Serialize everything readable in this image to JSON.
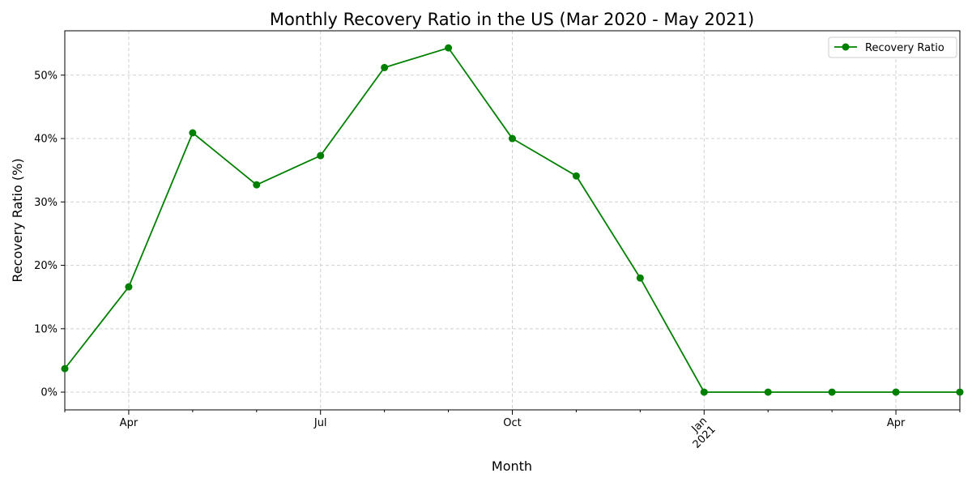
{
  "chart_data": {
    "type": "line",
    "title": "Monthly Recovery Ratio in the US (Mar 2020 - May 2021)",
    "xlabel": "Month",
    "ylabel": "Recovery Ratio (%)",
    "x": [
      "2020-03",
      "2020-04",
      "2020-05",
      "2020-06",
      "2020-07",
      "2020-08",
      "2020-09",
      "2020-10",
      "2020-11",
      "2020-12",
      "2021-01",
      "2021-02",
      "2021-03",
      "2021-04",
      "2021-05"
    ],
    "series": [
      {
        "name": "Recovery Ratio",
        "color": "#008000",
        "values": [
          3.7,
          16.6,
          40.9,
          32.7,
          37.3,
          51.2,
          54.3,
          40.0,
          34.1,
          18.0,
          0,
          0,
          0,
          0,
          0
        ]
      }
    ],
    "ylim": [
      -2.8,
      57.0
    ],
    "yticks": [
      0,
      10,
      20,
      30,
      40,
      50
    ],
    "ytick_labels": [
      "0%",
      "10%",
      "20%",
      "30%",
      "40%",
      "50%"
    ],
    "xticks_major": [
      {
        "month": "2020-04",
        "label": "Apr"
      },
      {
        "month": "2020-07",
        "label": "Jul"
      },
      {
        "month": "2020-10",
        "label": "Oct"
      },
      {
        "month": "2021-01",
        "label": "Jan\n2021"
      },
      {
        "month": "2021-04",
        "label": "Apr"
      }
    ],
    "xticks_minor": [
      "2020-03",
      "2020-05",
      "2020-06",
      "2020-08",
      "2020-09",
      "2020-11",
      "2020-12",
      "2021-02",
      "2021-03",
      "2021-05"
    ],
    "grid": true,
    "legend_position": "top-right"
  }
}
